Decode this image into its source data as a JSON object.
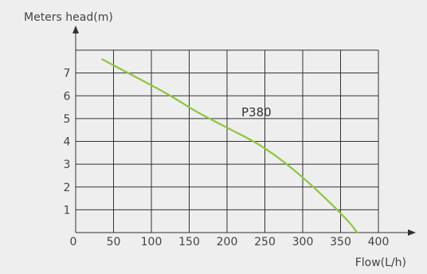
{
  "chart_data": {
    "type": "line",
    "ylabel": "Meters head(m)",
    "xlabel": "Flow(L/h)",
    "x_ticks": [
      "0",
      "50",
      "100",
      "150",
      "200",
      "250",
      "300",
      "350",
      "400"
    ],
    "y_ticks": [
      "1",
      "2",
      "3",
      "4",
      "5",
      "6",
      "7"
    ],
    "xlim": [
      0,
      400
    ],
    "ylim": [
      0,
      8
    ],
    "grid": true,
    "series": [
      {
        "name": "P380",
        "color": "#8dc63f",
        "x": [
          35,
          75,
          120,
          160,
          200,
          245,
          290,
          330,
          360,
          372
        ],
        "y": [
          7.6,
          6.9,
          6.1,
          5.3,
          4.6,
          3.8,
          2.7,
          1.5,
          0.5,
          0
        ]
      }
    ]
  }
}
